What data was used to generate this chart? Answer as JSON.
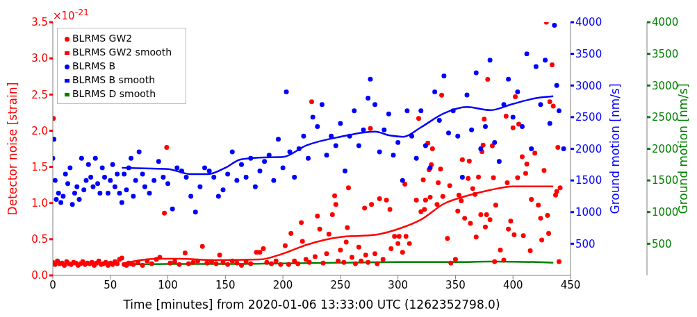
{
  "chart_data": {
    "type": "scatter",
    "xlabel": "Time [minutes] from 2020-01-06 13:33:00 UTC (1262352798.0)",
    "ylabel": "Detector noise [strain]",
    "y2label": "Ground motion [nm/s]",
    "y3label": "Ground motion [nm/s]",
    "annotations": [
      "×10$^{-21}$"
    ],
    "xlim": [
      0,
      450
    ],
    "xticks": [
      0,
      50,
      100,
      150,
      200,
      250,
      300,
      350,
      400,
      450
    ],
    "ylim": [
      0,
      3.5
    ],
    "yticks": [
      {
        "value": 0,
        "label": "0.0"
      },
      0.5,
      {
        "value": 1,
        "label": "1.0"
      },
      1.5,
      {
        "value": 2,
        "label": "2.0"
      },
      2.5,
      {
        "value": 3,
        "label": "3.0"
      },
      3.5
    ],
    "y2lim": [
      0,
      4000
    ],
    "y2ticks": [
      500,
      1000,
      1500,
      2000,
      2500,
      3000,
      3500,
      4000
    ],
    "y3lim": [
      0,
      4000
    ],
    "y3ticks": [
      500,
      1000,
      1500,
      2000,
      2500,
      3000,
      3500,
      4000
    ],
    "legend": "top left",
    "series": [
      {
        "name": "BLRMS GW2",
        "marker": "circle",
        "color": "#ff0000",
        "x": [
          0,
          0.5,
          2,
          4,
          6,
          8,
          10,
          12,
          14,
          16,
          18,
          20,
          22,
          24,
          26,
          28,
          30,
          32,
          34,
          36,
          38,
          40,
          42,
          44,
          46,
          48,
          50,
          52,
          54,
          56,
          58,
          60,
          62,
          64,
          66,
          68,
          70,
          74,
          78,
          82,
          86,
          90,
          93,
          97,
          99,
          102,
          106,
          110,
          115,
          118,
          122,
          126,
          130,
          134,
          138,
          142,
          145,
          148,
          152,
          156,
          160,
          164,
          168,
          172,
          177,
          180,
          183,
          186,
          190,
          194,
          198,
          202,
          205,
          207,
          210,
          213,
          216,
          217,
          220,
          223,
          225,
          228,
          230,
          232,
          235,
          238,
          240,
          243,
          245,
          246,
          248,
          250,
          253,
          255,
          256,
          257,
          260,
          263,
          266,
          268,
          271,
          272,
          274,
          276,
          277,
          280,
          282,
          284,
          287,
          290,
          293,
          294,
          297,
          300,
          301,
          304,
          306,
          307,
          310,
          316,
          318,
          320,
          322,
          323,
          324,
          326,
          327,
          328,
          329,
          330,
          334,
          335,
          337,
          338,
          339,
          343,
          345,
          346,
          350,
          352,
          353,
          355,
          356,
          358,
          361,
          362,
          363,
          365,
          367,
          368,
          370,
          372,
          373,
          374,
          375,
          376,
          377,
          378,
          380,
          382,
          383,
          384,
          385,
          389,
          392,
          394,
          395,
          396,
          398,
          400,
          401,
          402,
          404,
          405,
          408,
          409,
          411,
          412,
          415,
          416,
          419,
          422,
          424,
          425,
          427,
          429,
          430,
          431,
          432,
          434,
          435,
          437,
          438,
          439,
          440,
          441
        ],
        "values": [
          0.18,
          2.17,
          0.15,
          0.2,
          0.16,
          0.17,
          0.14,
          0.19,
          0.16,
          0.15,
          0.18,
          0.17,
          0.14,
          0.16,
          0.19,
          0.15,
          0.17,
          0.16,
          0.18,
          0.14,
          0.17,
          0.2,
          0.15,
          0.16,
          0.18,
          0.14,
          0.17,
          0.15,
          0.19,
          0.16,
          0.22,
          0.24,
          0.15,
          0.14,
          0.17,
          0.16,
          0.15,
          0.18,
          0.14,
          0.2,
          0.16,
          0.22,
          0.25,
          0.86,
          1.77,
          0.17,
          0.19,
          0.15,
          0.31,
          0.16,
          0.18,
          0.2,
          0.4,
          0.17,
          0.19,
          0.16,
          0.28,
          0.18,
          0.15,
          0.2,
          0.17,
          0.14,
          0.19,
          0.16,
          0.32,
          0.32,
          0.37,
          0.18,
          0.16,
          0.2,
          0.15,
          0.41,
          0.15,
          0.58,
          0.2,
          0.16,
          0.73,
          0.47,
          0.22,
          0.18,
          2.4,
          0.26,
          0.82,
          0.64,
          0.17,
          0.3,
          0.57,
          0.84,
          1.1,
          0.98,
          0.2,
          0.35,
          0.18,
          0.46,
          0.66,
          1.21,
          0.25,
          0.16,
          0.39,
          0.2,
          0.93,
          0.28,
          0.18,
          2.03,
          0.98,
          0.3,
          0.16,
          1.06,
          0.22,
          1.04,
          0.91,
          0.37,
          0.54,
          0.44,
          0.54,
          0.32,
          1.26,
          0.54,
          0.44,
          1.04,
          2.17,
          0.88,
          1.32,
          0.91,
          1.04,
          1.83,
          1.46,
          1.08,
          1.53,
          1.75,
          0.98,
          1.28,
          1.47,
          2.49,
          1.09,
          0.51,
          1.24,
          0.17,
          0.22,
          0.89,
          1.11,
          1.03,
          1.6,
          0.79,
          1.34,
          1.58,
          0.72,
          1.2,
          1.12,
          0.53,
          1.36,
          0.84,
          1.71,
          1.8,
          2.16,
          0.67,
          0.84,
          2.71,
          0.77,
          1.79,
          1.35,
          0.19,
          0.97,
          0.35,
          0.21,
          2.2,
          1.28,
          0.64,
          0.75,
          2.04,
          0.56,
          2.47,
          1.35,
          2.09,
          1.64,
          0.55,
          1.41,
          1.54,
          0.34,
          1.05,
          1.69,
          0.97,
          0.79,
          0.49,
          1.45,
          3.5,
          0.83,
          0.58,
          2.4,
          2.91,
          2.34,
          1.11,
          1.16,
          1.77,
          0.19,
          1.21
        ]
      },
      {
        "name": "BLRMS GW2 smooth",
        "type": "line",
        "color": "#ff0000",
        "x": [
          60,
          90,
          110,
          140,
          180,
          200,
          220,
          250,
          280,
          300,
          320,
          340,
          360,
          380,
          400,
          420,
          435
        ],
        "values": [
          0.16,
          0.23,
          0.23,
          0.21,
          0.22,
          0.3,
          0.42,
          0.53,
          0.56,
          0.64,
          0.77,
          0.99,
          1.1,
          1.18,
          1.23,
          1.23,
          1.23
        ]
      },
      {
        "name": "BLRMS B",
        "marker": "circle",
        "axis": "y2",
        "color": "#0000ff",
        "x": [
          0,
          1,
          2,
          3,
          5,
          7,
          9,
          11,
          13,
          15,
          17,
          19,
          21,
          23,
          25,
          27,
          29,
          31,
          33,
          35,
          37,
          39,
          41,
          43,
          45,
          48,
          50,
          52,
          54,
          56,
          58,
          60,
          62,
          64,
          66,
          68,
          70,
          72,
          75,
          78,
          80,
          84,
          88,
          92,
          96,
          100,
          104,
          108,
          112,
          116,
          120,
          124,
          128,
          132,
          136,
          140,
          144,
          148,
          152,
          156,
          160,
          164,
          168,
          172,
          176,
          180,
          184,
          188,
          192,
          196,
          200,
          203,
          206,
          210,
          214,
          218,
          222,
          226,
          230,
          234,
          238,
          242,
          246,
          250,
          254,
          258,
          262,
          266,
          270,
          274,
          276,
          280,
          284,
          288,
          292,
          296,
          300,
          304,
          308,
          312,
          316,
          320,
          324,
          328,
          332,
          336,
          340,
          344,
          348,
          352,
          356,
          360,
          364,
          368,
          372,
          376,
          380,
          384,
          388,
          392,
          396,
          400,
          404,
          408,
          412,
          416,
          420,
          424,
          428,
          432,
          436,
          438,
          440,
          444
        ],
        "values": [
          1850,
          2150,
          1500,
          1200,
          1300,
          1150,
          1250,
          1600,
          1450,
          1700,
          1120,
          1300,
          1400,
          1200,
          1850,
          1350,
          1500,
          1750,
          1550,
          1400,
          1850,
          1450,
          1300,
          1700,
          1550,
          1300,
          1500,
          1750,
          1400,
          1600,
          1300,
          1150,
          1600,
          1350,
          1700,
          1850,
          1250,
          1500,
          1950,
          1600,
          1400,
          1300,
          1500,
          1800,
          1550,
          1450,
          1050,
          1700,
          1650,
          1550,
          1250,
          1000,
          1400,
          1700,
          1650,
          1550,
          1250,
          1350,
          1600,
          1950,
          1500,
          1750,
          1550,
          1850,
          1400,
          1650,
          1800,
          1900,
          1500,
          2150,
          1700,
          2900,
          1950,
          1550,
          2000,
          2200,
          1850,
          2500,
          2350,
          2700,
          1900,
          2200,
          2050,
          2400,
          1650,
          2200,
          2600,
          2050,
          2300,
          2800,
          3100,
          2700,
          1950,
          2300,
          2550,
          1900,
          2100,
          1500,
          2600,
          2200,
          1850,
          2600,
          2050,
          1700,
          2900,
          2450,
          3150,
          2250,
          2600,
          2200,
          1550,
          2850,
          2300,
          3200,
          2000,
          2350,
          3400,
          2100,
          1800,
          2700,
          3100,
          2500,
          2900,
          2350,
          3500,
          2000,
          3300,
          2700,
          3400,
          2400,
          3950,
          3000,
          2600,
          2000
        ]
      },
      {
        "name": "BLRMS B smooth",
        "type": "line",
        "axis": "y2",
        "color": "#0000ff",
        "x": [
          60,
          80,
          100,
          120,
          135,
          150,
          163,
          179,
          200,
          220,
          250,
          280,
          293,
          305,
          320,
          340,
          360,
          380,
          400,
          420,
          435
        ],
        "values": [
          1700,
          1690,
          1680,
          1600,
          1600,
          1700,
          1830,
          1860,
          1870,
          2050,
          2190,
          2270,
          2210,
          2190,
          2340,
          2560,
          2660,
          2610,
          2710,
          2800,
          2830
        ]
      },
      {
        "name": "BLRMS D smooth",
        "type": "line",
        "axis": "y3",
        "color": "#008000",
        "x": [
          60,
          100,
          150,
          200,
          250,
          300,
          350,
          380,
          420,
          435
        ],
        "values": [
          170,
          180,
          180,
          190,
          200,
          210,
          210,
          220,
          210,
          200
        ]
      }
    ]
  }
}
